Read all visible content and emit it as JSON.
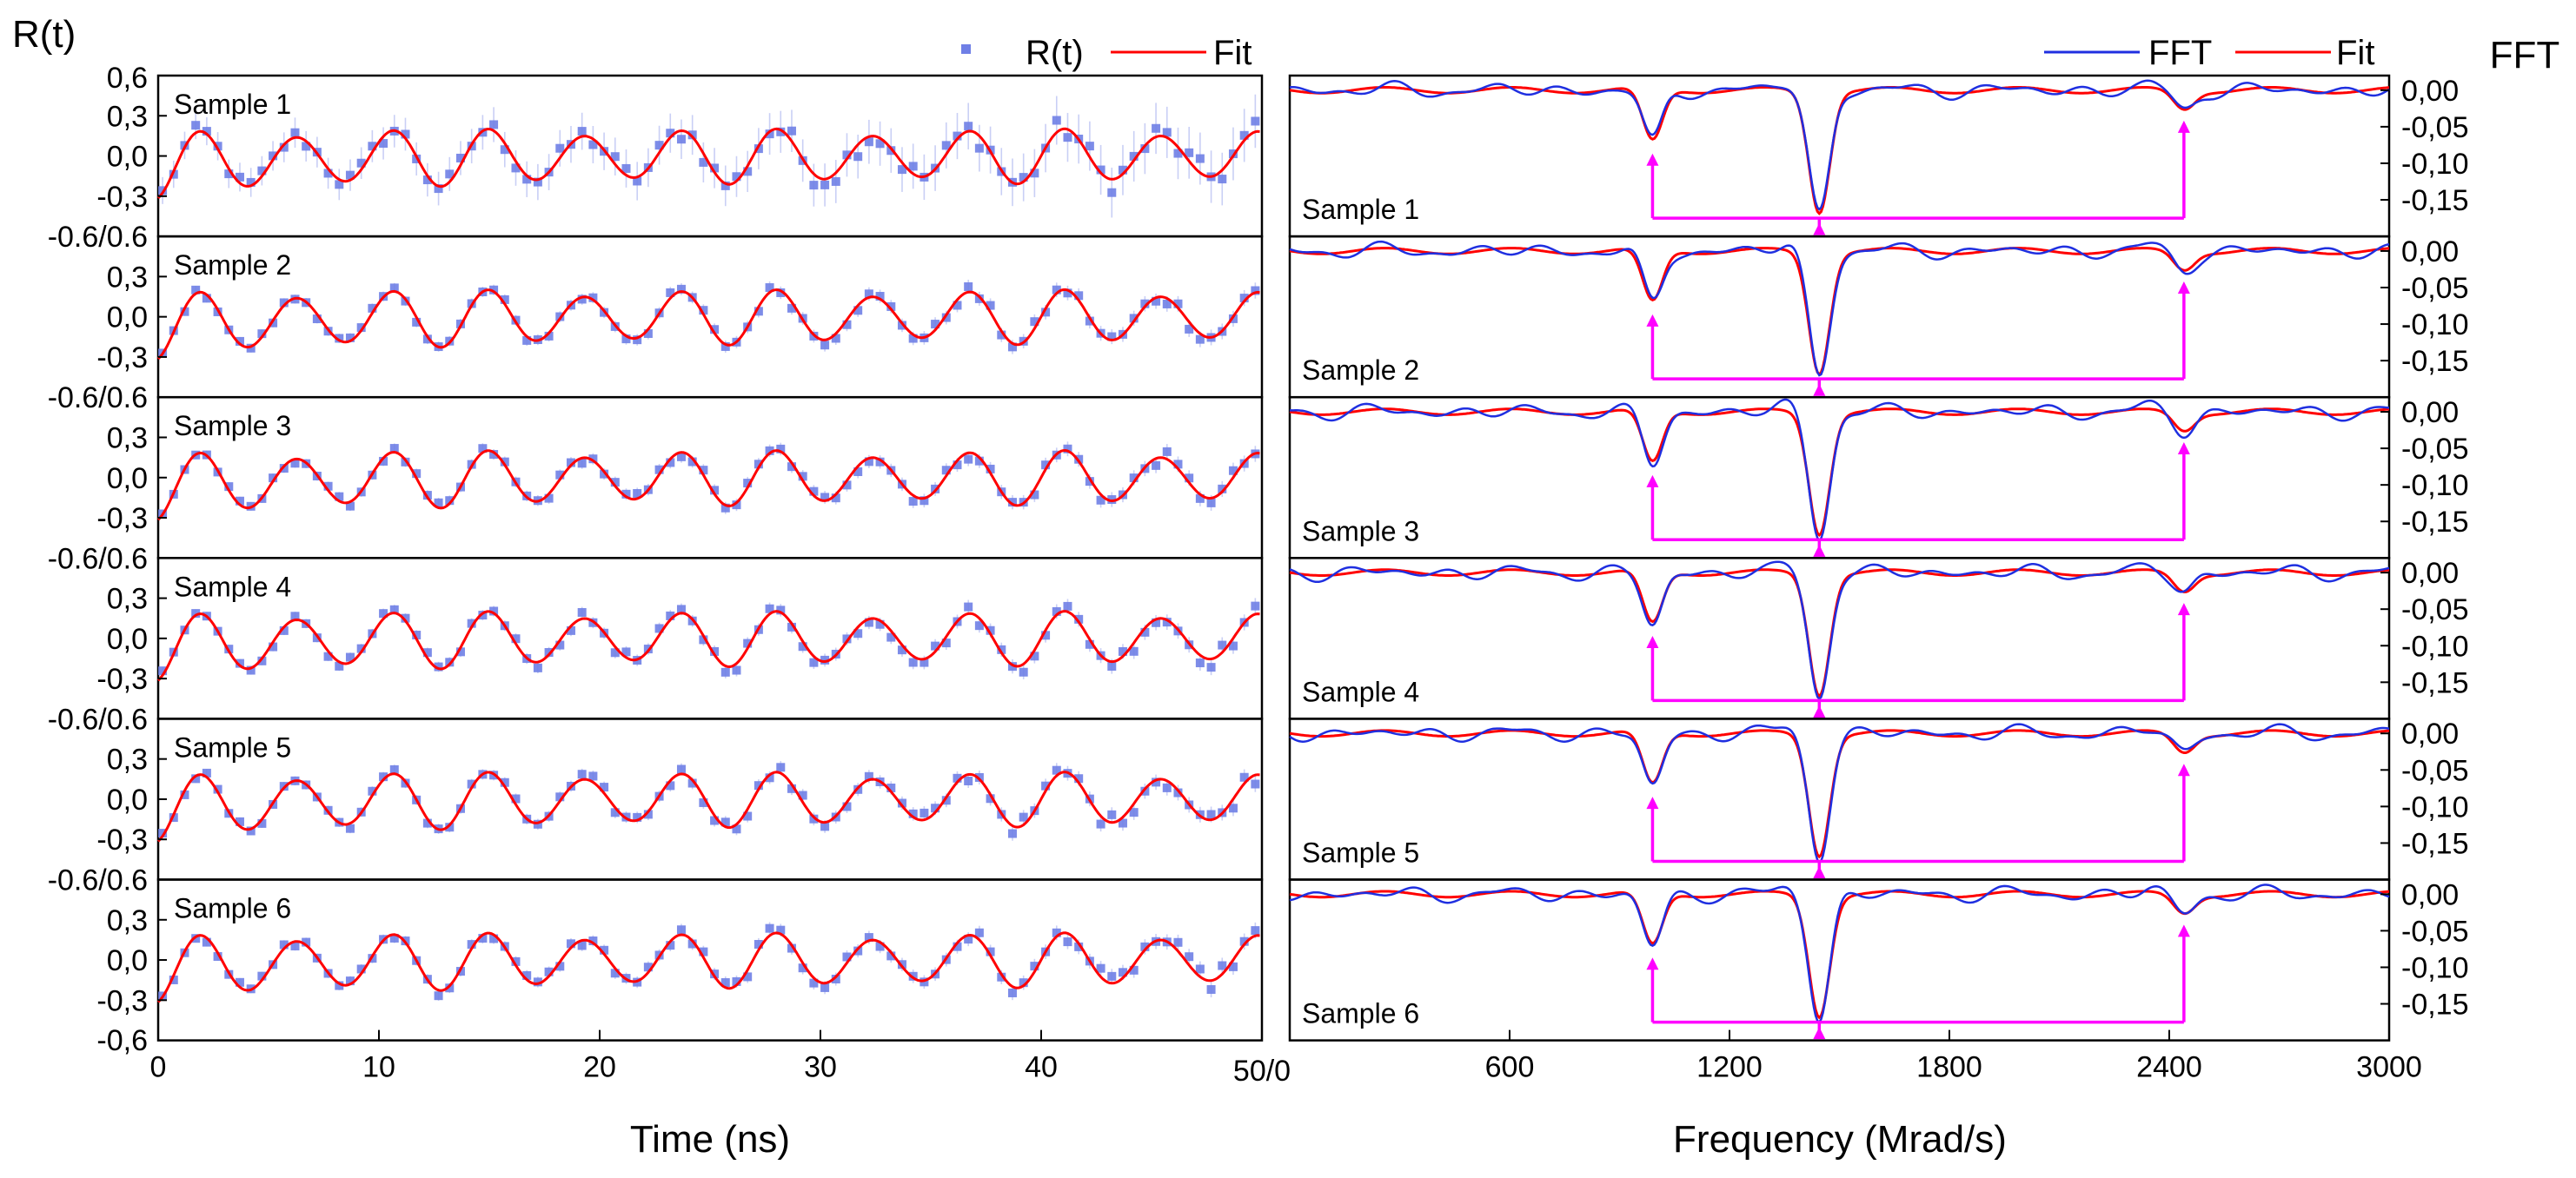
{
  "chart_data": [
    {
      "type": "scatter",
      "title": "",
      "ylabel": "R(t)",
      "xlabel": "Time (ns)",
      "legend": {
        "position": "top-right",
        "entries": [
          "R(t)",
          "Fit"
        ]
      },
      "xlim": [
        0,
        50
      ],
      "ylim": [
        -0.6,
        0.6
      ],
      "x_ticks": [
        0,
        10,
        20,
        30,
        40
      ],
      "x_tick_labels": [
        "0",
        "10",
        "20",
        "30",
        "40"
      ],
      "x_right_label": "50/0",
      "y_tick_labels": [
        "0,6",
        "0,3",
        "0,0",
        "-0,3",
        "-0.6/0.6",
        "-0,6"
      ],
      "colors": {
        "data": "#6f7fe6",
        "fit": "#ff0000",
        "errorbar": "#c9cff5"
      },
      "panels": [
        {
          "label": "Sample 1",
          "model": {
            "period": 4.35,
            "phase": 1.22,
            "amplitude": 0.21,
            "offset": -0.07,
            "noise": 0.055,
            "error": 0.1
          }
        },
        {
          "label": "Sample 2",
          "model": {
            "period": 4.35,
            "phase": 1.22,
            "amplitude": 0.21,
            "offset": -0.07,
            "noise": 0.03,
            "error": 0.03
          }
        },
        {
          "label": "Sample 3",
          "model": {
            "period": 4.35,
            "phase": 1.22,
            "amplitude": 0.21,
            "offset": -0.07,
            "noise": 0.03,
            "error": 0.03
          }
        },
        {
          "label": "Sample 4",
          "model": {
            "period": 4.35,
            "phase": 1.22,
            "amplitude": 0.21,
            "offset": -0.07,
            "noise": 0.035,
            "error": 0.03
          }
        },
        {
          "label": "Sample 5",
          "model": {
            "period": 4.35,
            "phase": 1.22,
            "amplitude": 0.21,
            "offset": -0.07,
            "noise": 0.035,
            "error": 0.03
          }
        },
        {
          "label": "Sample 6",
          "model": {
            "period": 4.35,
            "phase": 1.22,
            "amplitude": 0.21,
            "offset": -0.07,
            "noise": 0.035,
            "error": 0.03
          }
        }
      ]
    },
    {
      "type": "line",
      "title": "",
      "ylabel": "FFT",
      "xlabel": "Frequency (Mrad/s)",
      "legend": {
        "position": "top-right",
        "entries": [
          "FFT",
          "Fit"
        ]
      },
      "xlim": [
        0,
        3000
      ],
      "ylim": [
        -0.2,
        0.02
      ],
      "x_ticks": [
        600,
        1200,
        1800,
        2400,
        3000
      ],
      "x_tick_labels": [
        "600",
        "1200",
        "1800",
        "2400",
        "3000"
      ],
      "y_ticks": [
        0.0,
        -0.05,
        -0.1,
        -0.15
      ],
      "y_tick_labels": [
        "0,00",
        "-0,05",
        "-0,10",
        "-0,15"
      ],
      "colors": {
        "fft": "#1f2fe0",
        "fit": "#ff0000",
        "arrows": "#ff00ff"
      },
      "peaks": [
        {
          "center": 990,
          "depth": -0.07,
          "width": 38
        },
        {
          "center": 1445,
          "depth": -0.165,
          "width": 40
        },
        {
          "center": 2440,
          "depth": -0.025,
          "width": 40
        }
      ],
      "arrow_frequencies": [
        990,
        1445,
        2440
      ],
      "arrow_bracket_level": -0.175,
      "panels": [
        {
          "label": "Sample 1"
        },
        {
          "label": "Sample 2"
        },
        {
          "label": "Sample 3"
        },
        {
          "label": "Sample 4"
        },
        {
          "label": "Sample 5"
        },
        {
          "label": "Sample 6"
        }
      ]
    }
  ]
}
